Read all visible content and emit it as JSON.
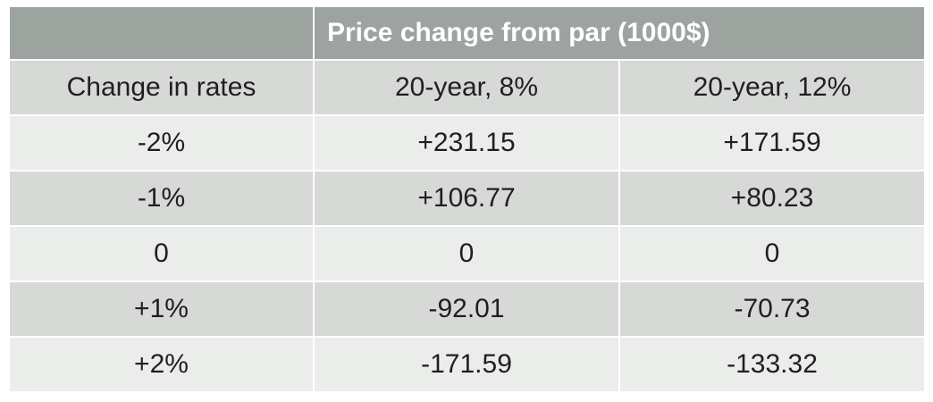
{
  "table": {
    "title": "Price change from par (1000$)",
    "columns": [
      "Change in rates",
      "20-year, 8%",
      "20-year, 12%"
    ],
    "rows": [
      [
        "-2%",
        "+231.15",
        "+171.59"
      ],
      [
        "-1%",
        "+106.77",
        "+80.23"
      ],
      [
        "0",
        "0",
        "0"
      ],
      [
        "+1%",
        "-92.01",
        "-70.73"
      ],
      [
        "+2%",
        "-171.59",
        "-133.32"
      ]
    ]
  },
  "colors": {
    "header_bg": "#9da39e",
    "header_text": "#ffffff",
    "row_dark": "#d6d9d6",
    "row_light": "#ebedeb",
    "text": "#1f1f1f"
  }
}
